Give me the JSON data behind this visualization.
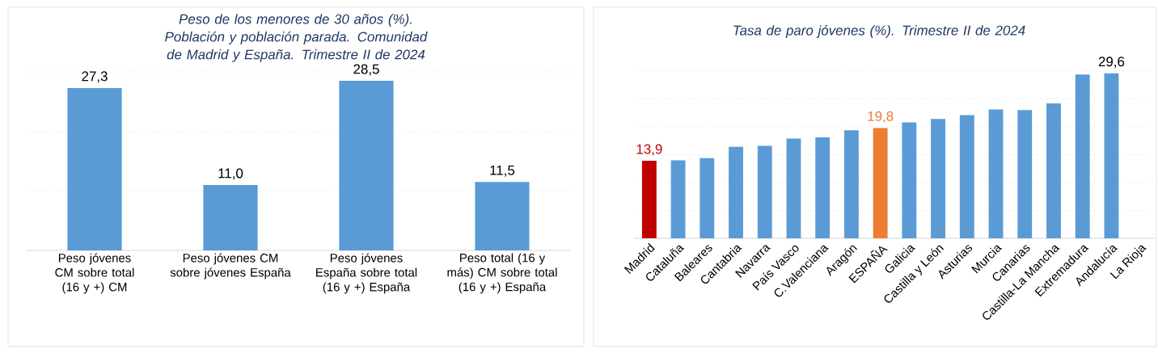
{
  "chart_data": [
    {
      "type": "bar",
      "title": "Peso de los menores de 30 años (%). Población y población parada. Comunidad de Madrid y España. Trimestre II de 2024",
      "categories": [
        "Peso jóvenes CM sobre total (16 y +) CM",
        "Peso jóvenes CM sobre jóvenes España",
        "Peso jóvenes España sobre total (16 y +) España",
        "Peso total (16 y más) CM sobre total (16 y +) España"
      ],
      "values": [
        27.3,
        11.0,
        28.5,
        11.5
      ],
      "value_labels": [
        "27,3",
        "11,0",
        "28,5",
        "11,5"
      ],
      "color": "#5b9bd5",
      "ylim": [
        0,
        30
      ],
      "yticks": [
        {
          "value": 0,
          "label": null
        },
        {
          "value": 10,
          "label": null
        },
        {
          "value": 20,
          "label": null
        },
        {
          "value": 30,
          "label": null
        }
      ],
      "grid": "y",
      "tick_labels": "x"
    },
    {
      "type": "bar",
      "title": "Tasa de paro jóvenes (%). Trimestre II de 2024",
      "categories": [
        "Madrid",
        "Cataluña",
        "Baleares",
        "Cantabria",
        "Navarra",
        "País Vasco",
        "C.Valenciana",
        "Aragón",
        "ESPAÑA",
        "Galicia",
        "Castilla y León",
        "Asturias",
        "Murcia",
        "Canarias",
        "Castilla-La Mancha",
        "Extremadura",
        "Andalucía",
        "La Rioja"
      ],
      "values": [
        13.9,
        14.0,
        14.4,
        16.4,
        16.6,
        17.9,
        18.1,
        19.4,
        19.8,
        20.8,
        21.4,
        22.1,
        23.1,
        23.0,
        24.2,
        29.4,
        29.6,
        null
      ],
      "value_labels": [
        "13,9",
        null,
        null,
        null,
        null,
        null,
        null,
        null,
        "19,8",
        null,
        null,
        null,
        null,
        null,
        null,
        null,
        "29,6",
        null
      ],
      "colors": [
        "#c00000",
        "#5b9bd5",
        "#5b9bd5",
        "#5b9bd5",
        "#5b9bd5",
        "#5b9bd5",
        "#5b9bd5",
        "#5b9bd5",
        "#ed7d31",
        "#5b9bd5",
        "#5b9bd5",
        "#5b9bd5",
        "#5b9bd5",
        "#5b9bd5",
        "#5b9bd5",
        "#5b9bd5",
        "#5b9bd5",
        "#5b9bd5"
      ],
      "ylim": [
        0,
        30
      ],
      "yticks": [
        {
          "value": 0,
          "label": null
        },
        {
          "value": 5,
          "label": null
        },
        {
          "value": 10,
          "label": null
        },
        {
          "value": 15,
          "label": null
        },
        {
          "value": 20,
          "label": null
        },
        {
          "value": 25,
          "label": null
        },
        {
          "value": 30,
          "label": null
        }
      ],
      "grid": "y",
      "tick_labels": "x"
    }
  ]
}
